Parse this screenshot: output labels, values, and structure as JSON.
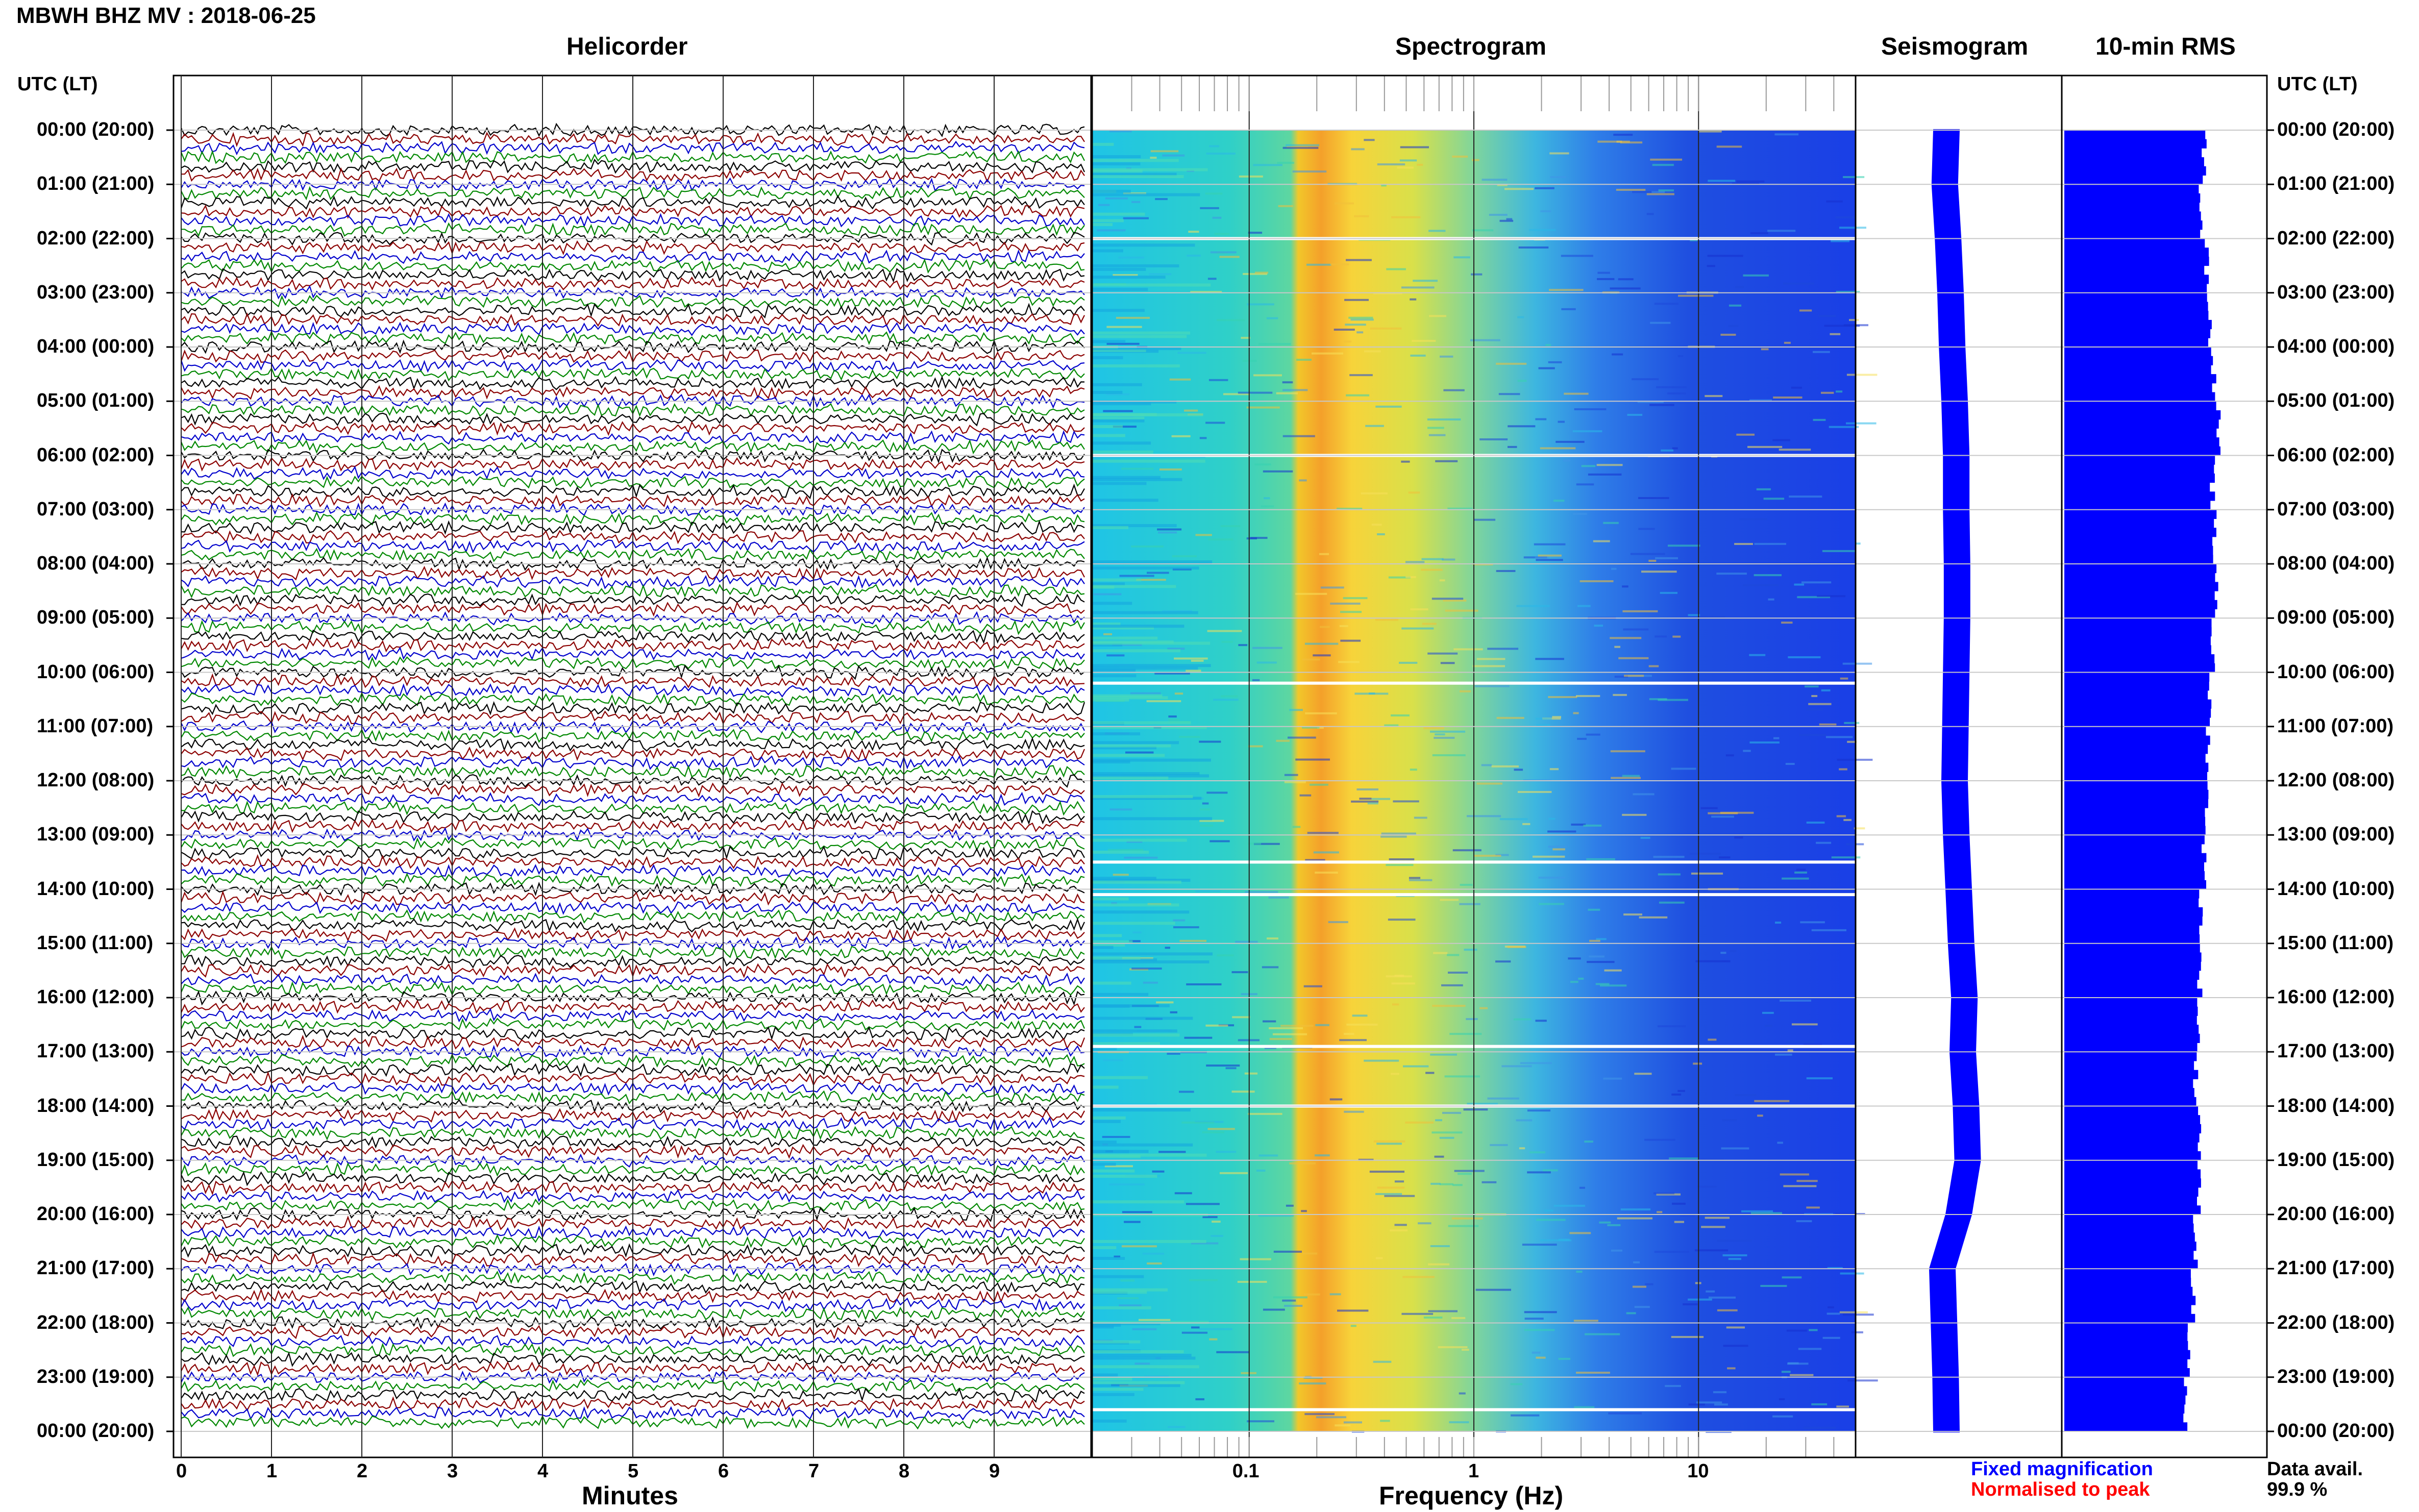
{
  "header": {
    "title": "MBWH BHZ MV : 2018-06-25",
    "utc_label": "UTC (LT)"
  },
  "panels": {
    "helicorder": "Helicorder",
    "spectrogram": "Spectrogram",
    "seismogram": "Seismogram",
    "rms": "10-min RMS"
  },
  "axes": {
    "minutes_label": "Minutes",
    "frequency_label": "Frequency (Hz)",
    "minute_ticks": [
      "0",
      "1",
      "2",
      "3",
      "4",
      "5",
      "6",
      "7",
      "8",
      "9"
    ],
    "frequency_ticks": [
      "0.1",
      "1",
      "10"
    ]
  },
  "time_labels": [
    "00:00 (20:00)",
    "01:00 (21:00)",
    "02:00 (22:00)",
    "03:00 (23:00)",
    "04:00 (00:00)",
    "05:00 (01:00)",
    "06:00 (02:00)",
    "07:00 (03:00)",
    "08:00 (04:00)",
    "09:00 (05:00)",
    "10:00 (06:00)",
    "11:00 (07:00)",
    "12:00 (08:00)",
    "13:00 (09:00)",
    "14:00 (10:00)",
    "15:00 (11:00)",
    "16:00 (12:00)",
    "17:00 (13:00)",
    "18:00 (14:00)",
    "19:00 (15:00)",
    "20:00 (16:00)",
    "21:00 (17:00)",
    "22:00 (18:00)",
    "23:00 (19:00)",
    "00:00 (20:00)"
  ],
  "legend": {
    "fixed": "Fixed magnification",
    "normalised": "Normalised to peak",
    "data_avail_label": "Data avail.",
    "data_avail_value": "99.9 %"
  },
  "colors": {
    "trace_cycle": [
      "#000000",
      "#8b0000",
      "#0000cc",
      "#008800"
    ],
    "fixed": "#0000ff",
    "normalised": "#ff0000",
    "rms_bar": "#0000ff"
  },
  "chart_data": [
    {
      "type": "line",
      "panel": "Helicorder",
      "xlabel": "Minutes",
      "xlim": [
        0,
        10
      ],
      "rows": 144,
      "minutes_per_row": 10,
      "trace_color_cycle": [
        "black",
        "dark red",
        "blue",
        "green"
      ]
    },
    {
      "type": "heatmap",
      "panel": "Spectrogram",
      "xlabel": "Frequency (Hz)",
      "xscale": "log",
      "xlim": [
        0.02,
        50
      ],
      "peak_band_hz": [
        0.2,
        0.6
      ],
      "data_gaps_utc_hours": [
        2.0,
        6.0,
        10.2,
        13.5,
        14.1,
        16.9,
        18.0,
        23.6
      ]
    },
    {
      "type": "line",
      "panel": "Seismogram",
      "description_values": "trace centre offset per hour",
      "x": [
        0,
        1,
        2,
        3,
        4,
        5,
        6,
        7,
        8,
        9,
        10,
        11,
        12,
        13,
        14,
        15,
        16,
        17,
        18,
        19,
        20,
        21,
        22,
        23,
        24
      ],
      "offset": [
        -0.1,
        -0.12,
        -0.08,
        -0.05,
        -0.03,
        0,
        0.02,
        0.02,
        0.03,
        0.03,
        0.02,
        0.01,
        0,
        0.02,
        0.05,
        0.08,
        0.12,
        0.1,
        0.14,
        0.16,
        0.05,
        -0.15,
        -0.13,
        -0.11,
        -0.1
      ]
    },
    {
      "type": "bar",
      "panel": "10-min RMS",
      "orientation": "horizontal",
      "x": [
        0,
        1,
        2,
        3,
        4,
        5,
        6,
        7,
        8,
        9,
        10,
        11,
        12,
        13,
        14,
        15,
        16,
        17,
        18,
        19,
        20,
        21,
        22,
        23
      ],
      "values": [
        0.86,
        0.84,
        0.88,
        0.9,
        0.93,
        0.96,
        0.92,
        0.93,
        0.95,
        0.92,
        0.9,
        0.89,
        0.88,
        0.86,
        0.84,
        0.83,
        0.82,
        0.8,
        0.83,
        0.82,
        0.8,
        0.78,
        0.75,
        0.72
      ]
    }
  ]
}
